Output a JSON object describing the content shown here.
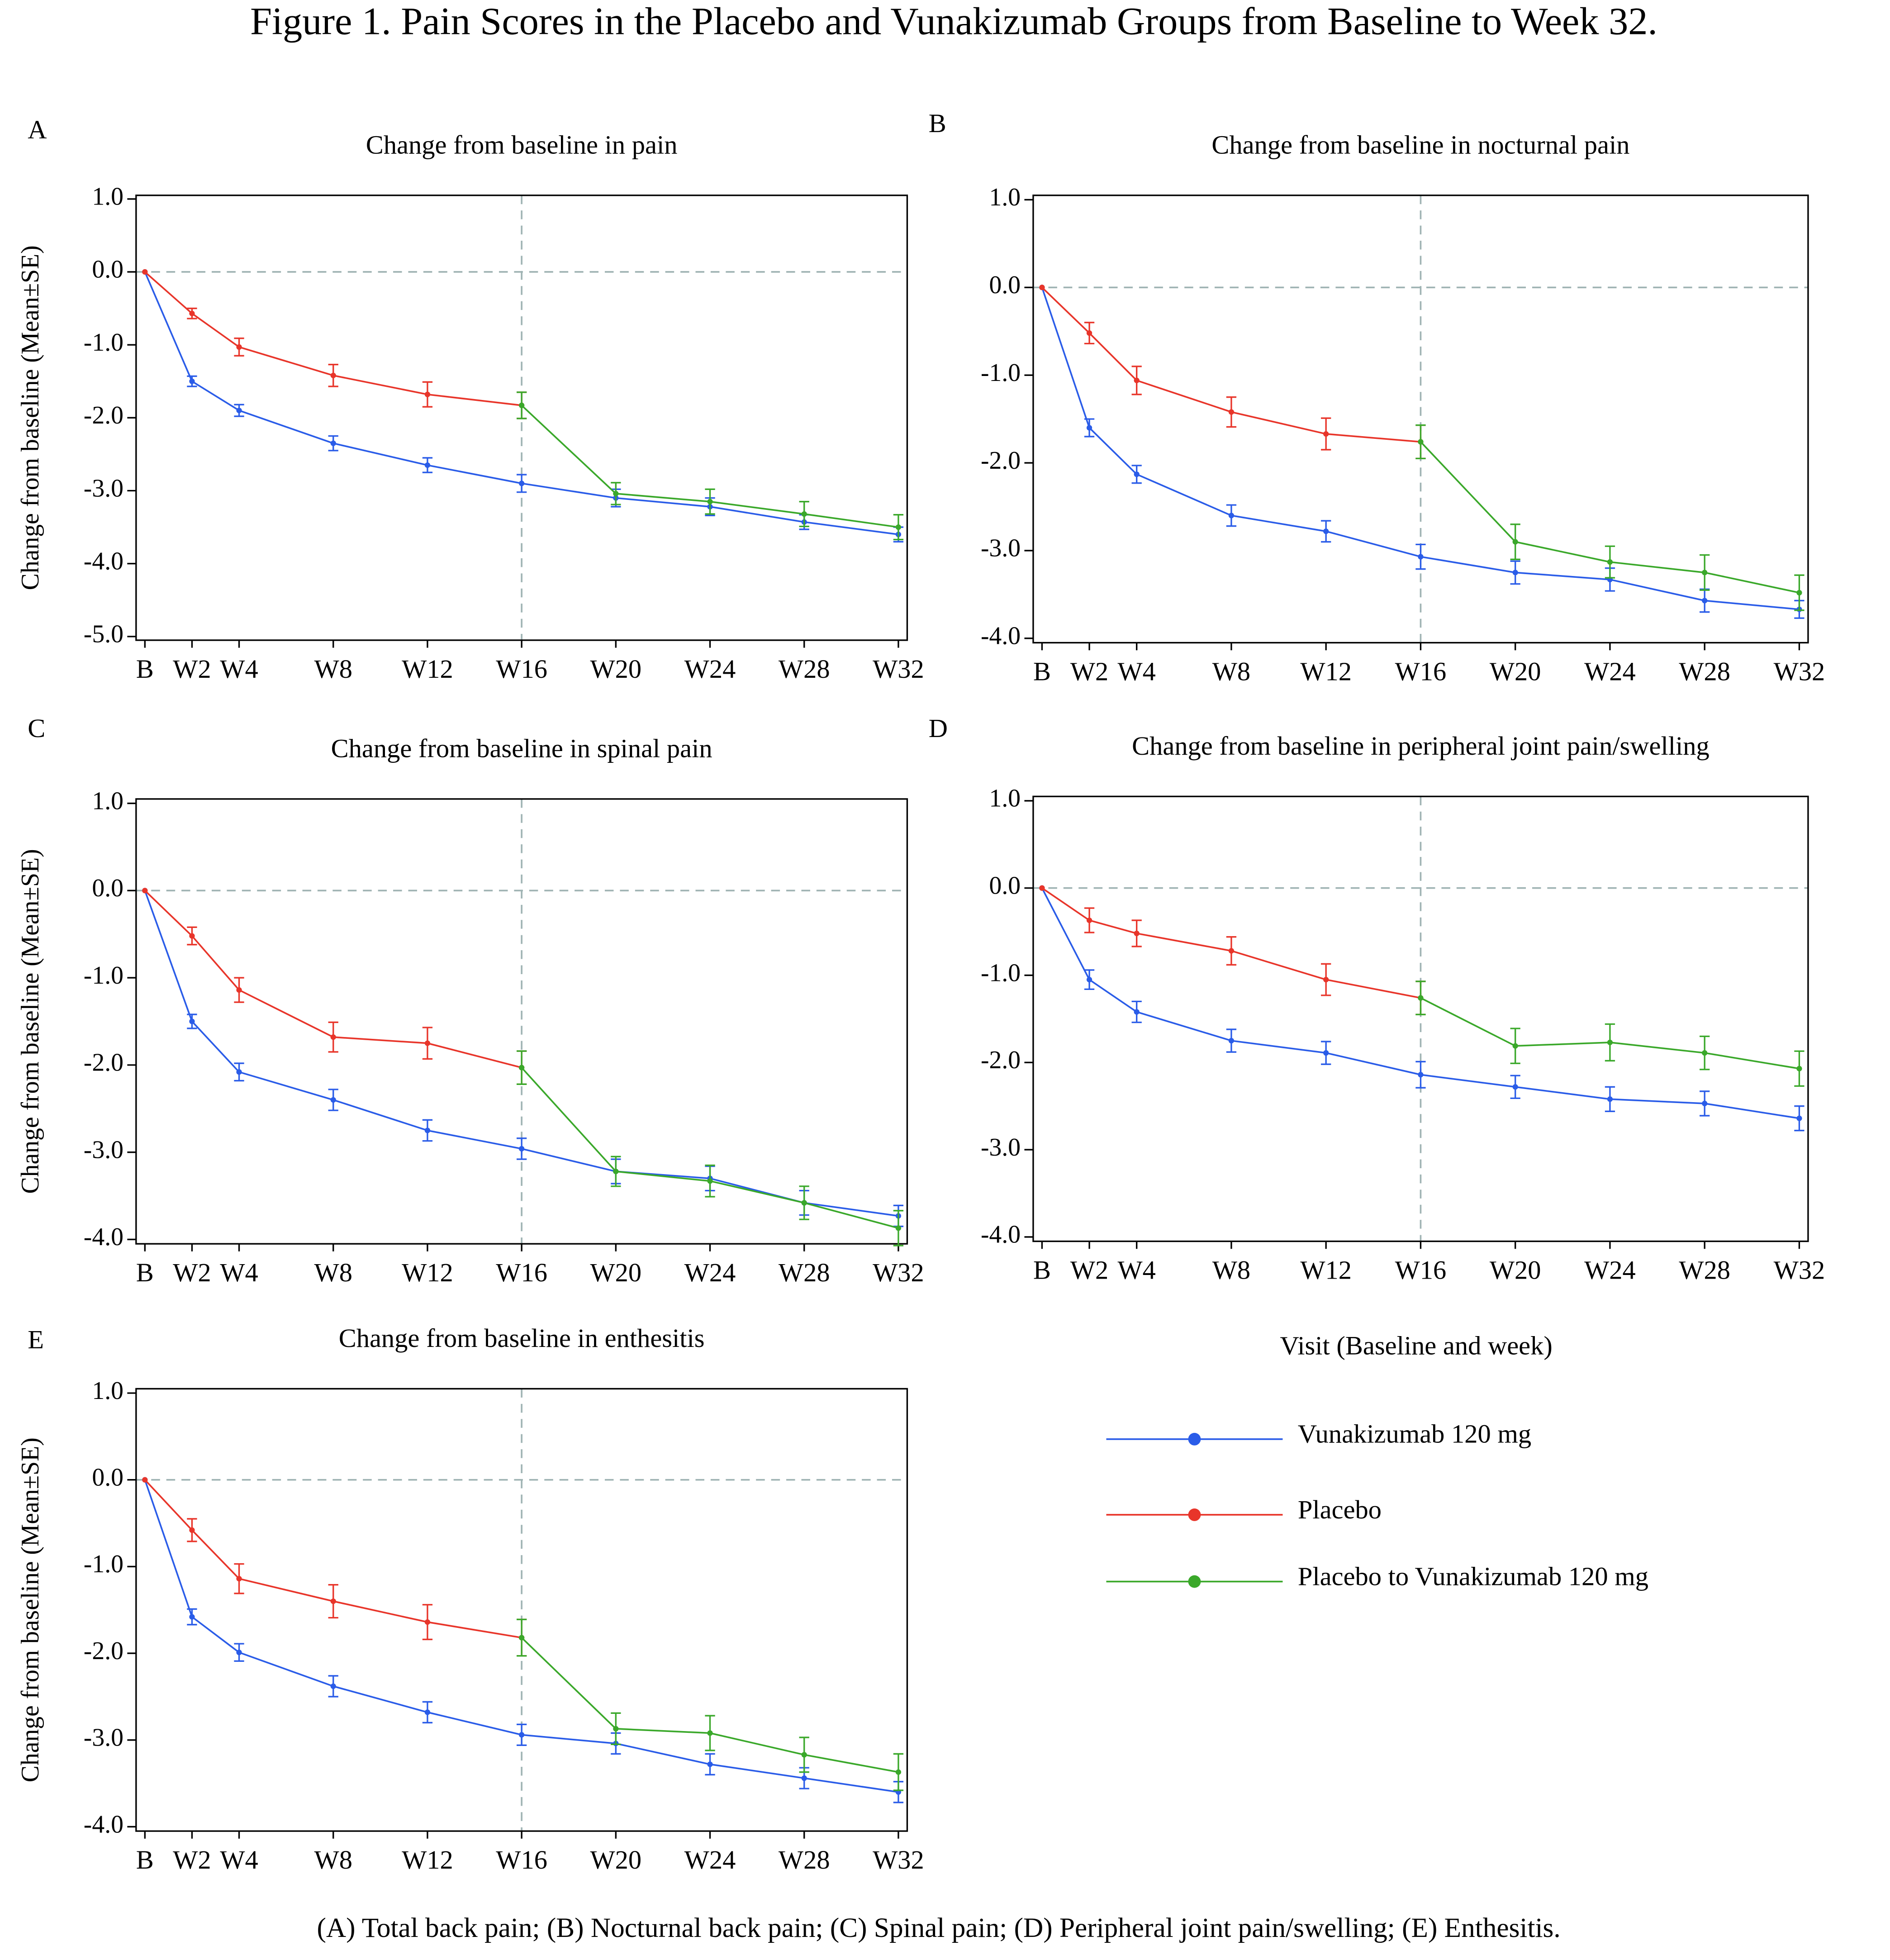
{
  "title": "Figure 1. Pain Scores in the Placebo and Vunakizumab Groups from Baseline to Week 32.",
  "xlabel": "Visit (Baseline and week)",
  "caption": "(A)   Total back pain; (B) Nocturnal back pain; (C) Spinal pain; (D) Peripheral joint pain/swelling; (E) Enthesitis.",
  "chart_data": [
    {
      "type": "line",
      "label": "A",
      "title": "Change from baseline in pain",
      "ylabel": "Change from baseline (Mean±SE)",
      "categories": [
        "B",
        "W2",
        "W4",
        "W8",
        "W12",
        "W16",
        "W20",
        "W24",
        "W28",
        "W32"
      ],
      "ylim": [
        -5.05,
        1.05
      ],
      "yticks": [
        {
          "value": 1,
          "label": "1.0"
        },
        {
          "value": 0,
          "label": "0.0"
        },
        {
          "value": -1,
          "label": "-1.0"
        },
        {
          "value": -2,
          "label": "-2.0"
        },
        {
          "value": -3,
          "label": "-3.0"
        },
        {
          "value": -4,
          "label": "-4.0"
        },
        {
          "value": -5,
          "label": "-5.0"
        }
      ],
      "series": [
        {
          "name": "Vunakizumab 120 mg",
          "color": "#2a5ce8",
          "values": [
            0,
            -1.5,
            -1.9,
            -2.35,
            -2.65,
            -2.9,
            -3.1,
            -3.22,
            -3.43,
            -3.6
          ],
          "errors": [
            0,
            0.07,
            0.08,
            0.1,
            0.1,
            0.12,
            0.12,
            0.12,
            0.1,
            0.1
          ]
        },
        {
          "name": "Placebo",
          "color": "#e8352a",
          "values": [
            0,
            -0.57,
            -1.03,
            -1.42,
            -1.68,
            -1.83,
            null,
            null,
            null,
            null
          ],
          "errors": [
            0,
            0.07,
            0.12,
            0.15,
            0.17,
            0.18,
            null,
            null,
            null,
            null
          ]
        },
        {
          "name": "Placebo to Vunakizumab 120 mg",
          "color": "#3aa82a",
          "values": [
            null,
            null,
            null,
            null,
            null,
            -1.83,
            -3.04,
            -3.15,
            -3.32,
            -3.5
          ],
          "errors": [
            null,
            null,
            null,
            null,
            null,
            0.18,
            0.15,
            0.17,
            0.17,
            0.17
          ]
        }
      ]
    },
    {
      "type": "line",
      "label": "B",
      "title": "Change from baseline in nocturnal pain",
      "ylabel": "",
      "categories": [
        "B",
        "W2",
        "W4",
        "W8",
        "W12",
        "W16",
        "W20",
        "W24",
        "W28",
        "W32"
      ],
      "ylim": [
        -4.05,
        1.05
      ],
      "yticks": [
        {
          "value": 1,
          "label": "1.0"
        },
        {
          "value": 0,
          "label": "0.0"
        },
        {
          "value": -1,
          "label": "-1.0"
        },
        {
          "value": -2,
          "label": "-2.0"
        },
        {
          "value": -3,
          "label": "-3.0"
        },
        {
          "value": -4,
          "label": "-4.0"
        }
      ],
      "series": [
        {
          "name": "Vunakizumab 120 mg",
          "color": "#2a5ce8",
          "values": [
            0,
            -1.6,
            -2.13,
            -2.6,
            -2.78,
            -3.07,
            -3.25,
            -3.33,
            -3.57,
            -3.67
          ],
          "errors": [
            0,
            0.1,
            0.1,
            0.12,
            0.12,
            0.14,
            0.13,
            0.13,
            0.13,
            0.1
          ]
        },
        {
          "name": "Placebo",
          "color": "#e8352a",
          "values": [
            0,
            -0.52,
            -1.06,
            -1.42,
            -1.67,
            -1.76,
            null,
            null,
            null,
            null
          ],
          "errors": [
            0,
            0.12,
            0.16,
            0.17,
            0.18,
            0.19,
            null,
            null,
            null,
            null
          ]
        },
        {
          "name": "Placebo to Vunakizumab 120 mg",
          "color": "#3aa82a",
          "values": [
            null,
            null,
            null,
            null,
            null,
            -1.76,
            -2.9,
            -3.13,
            -3.25,
            -3.48
          ],
          "errors": [
            null,
            null,
            null,
            null,
            null,
            0.19,
            0.2,
            0.18,
            0.2,
            0.2
          ]
        }
      ]
    },
    {
      "type": "line",
      "label": "C",
      "title": "Change from baseline in spinal pain",
      "ylabel": "Change from baseline (Mean±SE)",
      "categories": [
        "B",
        "W2",
        "W4",
        "W8",
        "W12",
        "W16",
        "W20",
        "W24",
        "W28",
        "W32"
      ],
      "ylim": [
        -4.05,
        1.05
      ],
      "yticks": [
        {
          "value": 1,
          "label": "1.0"
        },
        {
          "value": 0,
          "label": "0.0"
        },
        {
          "value": -1,
          "label": "-1.0"
        },
        {
          "value": -2,
          "label": "-2.0"
        },
        {
          "value": -3,
          "label": "-3.0"
        },
        {
          "value": -4,
          "label": "-4.0"
        }
      ],
      "series": [
        {
          "name": "Vunakizumab 120 mg",
          "color": "#2a5ce8",
          "values": [
            0,
            -1.5,
            -2.08,
            -2.4,
            -2.75,
            -2.96,
            -3.22,
            -3.3,
            -3.58,
            -3.73
          ],
          "errors": [
            0,
            0.08,
            0.1,
            0.12,
            0.12,
            0.12,
            0.14,
            0.14,
            0.14,
            0.12
          ]
        },
        {
          "name": "Placebo",
          "color": "#e8352a",
          "values": [
            0,
            -0.52,
            -1.14,
            -1.68,
            -1.75,
            -2.03,
            null,
            null,
            null,
            null
          ],
          "errors": [
            0,
            0.1,
            0.14,
            0.17,
            0.18,
            0.19,
            null,
            null,
            null,
            null
          ]
        },
        {
          "name": "Placebo to Vunakizumab 120 mg",
          "color": "#3aa82a",
          "values": [
            null,
            null,
            null,
            null,
            null,
            -2.03,
            -3.22,
            -3.33,
            -3.58,
            -3.87
          ],
          "errors": [
            null,
            null,
            null,
            null,
            null,
            0.19,
            0.17,
            0.18,
            0.19,
            0.2
          ]
        }
      ]
    },
    {
      "type": "line",
      "label": "D",
      "title": "Change from baseline in peripheral joint pain/swelling",
      "ylabel": "",
      "categories": [
        "B",
        "W2",
        "W4",
        "W8",
        "W12",
        "W16",
        "W20",
        "W24",
        "W28",
        "W32"
      ],
      "ylim": [
        -4.05,
        1.05
      ],
      "yticks": [
        {
          "value": 1,
          "label": "1.0"
        },
        {
          "value": 0,
          "label": "0.0"
        },
        {
          "value": -1,
          "label": "-1.0"
        },
        {
          "value": -2,
          "label": "-2.0"
        },
        {
          "value": -3,
          "label": "-3.0"
        },
        {
          "value": -4,
          "label": "-4.0"
        }
      ],
      "series": [
        {
          "name": "Vunakizumab 120 mg",
          "color": "#2a5ce8",
          "values": [
            0,
            -1.05,
            -1.42,
            -1.75,
            -1.89,
            -2.14,
            -2.28,
            -2.42,
            -2.47,
            -2.64
          ],
          "errors": [
            0,
            0.11,
            0.12,
            0.13,
            0.13,
            0.15,
            0.13,
            0.14,
            0.14,
            0.14
          ]
        },
        {
          "name": "Placebo",
          "color": "#e8352a",
          "values": [
            0,
            -0.37,
            -0.52,
            -0.72,
            -1.05,
            -1.26,
            null,
            null,
            null,
            null
          ],
          "errors": [
            0,
            0.14,
            0.15,
            0.16,
            0.18,
            0.19,
            null,
            null,
            null,
            null
          ]
        },
        {
          "name": "Placebo to Vunakizumab 120 mg",
          "color": "#3aa82a",
          "values": [
            null,
            null,
            null,
            null,
            null,
            -1.26,
            -1.81,
            -1.77,
            -1.89,
            -2.07
          ],
          "errors": [
            null,
            null,
            null,
            null,
            null,
            0.19,
            0.2,
            0.21,
            0.19,
            0.2
          ]
        }
      ]
    },
    {
      "type": "line",
      "label": "E",
      "title": "Change from baseline in enthesitis",
      "ylabel": "Change from baseline (Mean±SE)",
      "categories": [
        "B",
        "W2",
        "W4",
        "W8",
        "W12",
        "W16",
        "W20",
        "W24",
        "W28",
        "W32"
      ],
      "ylim": [
        -4.05,
        1.05
      ],
      "yticks": [
        {
          "value": 1,
          "label": "1.0"
        },
        {
          "value": 0,
          "label": "0.0"
        },
        {
          "value": -1,
          "label": "-1.0"
        },
        {
          "value": -2,
          "label": "-2.0"
        },
        {
          "value": -3,
          "label": "-3.0"
        },
        {
          "value": -4,
          "label": "-4.0"
        }
      ],
      "series": [
        {
          "name": "Vunakizumab 120 mg",
          "color": "#2a5ce8",
          "values": [
            0,
            -1.58,
            -1.99,
            -2.38,
            -2.68,
            -2.94,
            -3.04,
            -3.28,
            -3.44,
            -3.6
          ],
          "errors": [
            0,
            0.09,
            0.1,
            0.12,
            0.12,
            0.12,
            0.12,
            0.12,
            0.12,
            0.12
          ]
        },
        {
          "name": "Placebo",
          "color": "#e8352a",
          "values": [
            0,
            -0.58,
            -1.14,
            -1.4,
            -1.64,
            -1.82,
            null,
            null,
            null,
            null
          ],
          "errors": [
            0,
            0.13,
            0.17,
            0.19,
            0.2,
            0.21,
            null,
            null,
            null,
            null
          ]
        },
        {
          "name": "Placebo to Vunakizumab 120 mg",
          "color": "#3aa82a",
          "values": [
            null,
            null,
            null,
            null,
            null,
            -1.82,
            -2.87,
            -2.92,
            -3.17,
            -3.37
          ],
          "errors": [
            null,
            null,
            null,
            null,
            null,
            0.21,
            0.18,
            0.2,
            0.2,
            0.21
          ]
        }
      ]
    }
  ]
}
